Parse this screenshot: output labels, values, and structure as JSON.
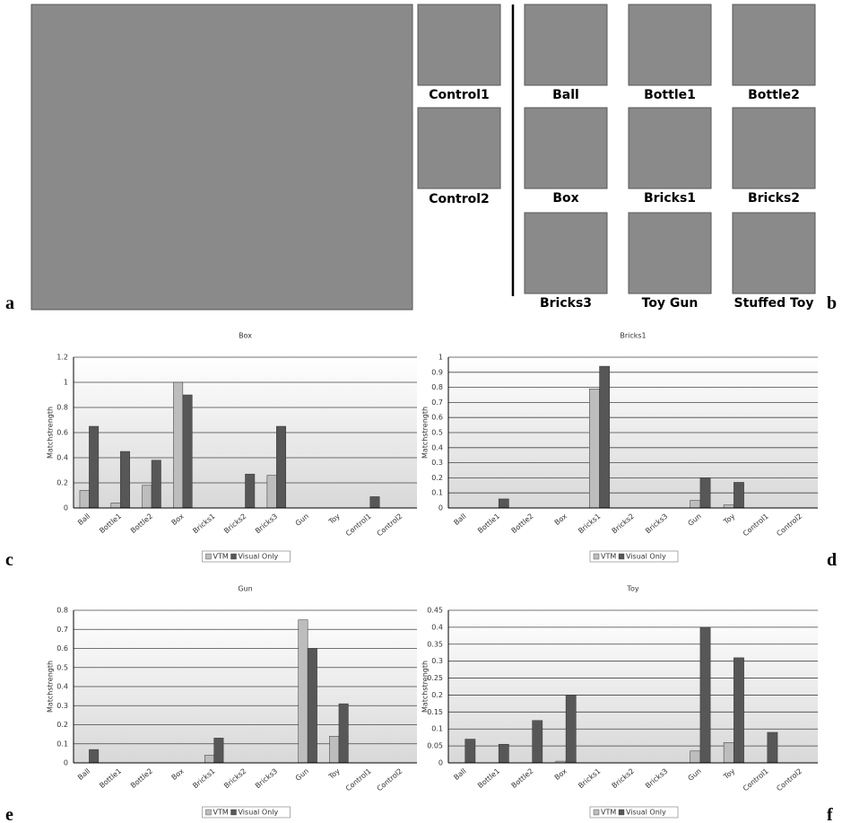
{
  "panel_labels": [
    "a",
    "b",
    "c",
    "d",
    "e",
    "f"
  ],
  "thumbnails": [
    "Control1",
    "Control2",
    "Ball",
    "Bottle1",
    "Bottle2",
    "Box",
    "Bricks1",
    "Bricks2",
    "Bricks3",
    "Toy Gun",
    "Stuffed Toy"
  ],
  "chart_data": [
    {
      "type": "bar",
      "title": "Box",
      "y_label": "Matchstrength",
      "categories": [
        "Ball",
        "Bottle1",
        "Bottle2",
        "Box",
        "Bricks1",
        "Bricks2",
        "Bricks3",
        "Gun",
        "Toy",
        "Control1",
        "Control2"
      ],
      "series": [
        {
          "name": "VTM",
          "color": "#bdbdbd",
          "values": [
            0.14,
            0.04,
            0.18,
            1.0,
            0,
            0,
            0.26,
            0,
            0,
            0,
            0
          ]
        },
        {
          "name": "Visual Only",
          "color": "#575757",
          "values": [
            0.65,
            0.45,
            0.38,
            0.9,
            0,
            0.27,
            0.65,
            0,
            0,
            0.09,
            0
          ]
        }
      ],
      "ylim": [
        0,
        1.2
      ],
      "yticks": [
        0,
        0.2,
        0.4,
        0.6,
        0.8,
        1,
        1.2
      ],
      "grid": true
    },
    {
      "type": "bar",
      "title": "Bricks1",
      "y_label": "Matchstrength",
      "categories": [
        "Ball",
        "Bottle1",
        "Bottle2",
        "Box",
        "Bricks1",
        "Bricks2",
        "Bricks3",
        "Gun",
        "Toy",
        "Control1",
        "Control2"
      ],
      "series": [
        {
          "name": "VTM",
          "color": "#bdbdbd",
          "values": [
            0,
            0,
            0,
            0,
            0.79,
            0,
            0,
            0.05,
            0.02,
            0,
            0
          ]
        },
        {
          "name": "Visual Only",
          "color": "#575757",
          "values": [
            0,
            0.06,
            0,
            0,
            0.94,
            0,
            0,
            0.2,
            0.17,
            0,
            0
          ]
        }
      ],
      "ylim": [
        0,
        1
      ],
      "yticks": [
        0,
        0.1,
        0.2,
        0.3,
        0.4,
        0.5,
        0.6,
        0.7,
        0.8,
        0.9,
        1
      ],
      "grid": true
    },
    {
      "type": "bar",
      "title": "Gun",
      "y_label": "Matchstrength",
      "categories": [
        "Ball",
        "Bottle1",
        "Bottle2",
        "Box",
        "Bricks1",
        "Bricks2",
        "Bricks3",
        "Gun",
        "Toy",
        "Control1",
        "Control2"
      ],
      "series": [
        {
          "name": "VTM",
          "color": "#bdbdbd",
          "values": [
            0,
            0,
            0,
            0,
            0.04,
            0,
            0,
            0.75,
            0.14,
            0,
            0
          ]
        },
        {
          "name": "Visual Only",
          "color": "#575757",
          "values": [
            0.07,
            0,
            0,
            0,
            0.13,
            0,
            0,
            0.6,
            0.31,
            0,
            0
          ]
        }
      ],
      "ylim": [
        0,
        0.8
      ],
      "yticks": [
        0,
        0.1,
        0.2,
        0.3,
        0.4,
        0.5,
        0.6,
        0.7,
        0.8
      ],
      "grid": true
    },
    {
      "type": "bar",
      "title": "Toy",
      "y_label": "Matchstrength",
      "categories": [
        "Ball",
        "Bottle1",
        "Bottle2",
        "Box",
        "Bricks1",
        "Bricks2",
        "Bricks3",
        "Gun",
        "Toy",
        "Control1",
        "Control2"
      ],
      "series": [
        {
          "name": "VTM",
          "color": "#bdbdbd",
          "values": [
            0,
            0,
            0,
            0.005,
            0,
            0,
            0,
            0.035,
            0.06,
            0,
            0
          ]
        },
        {
          "name": "Visual Only",
          "color": "#575757",
          "values": [
            0.07,
            0.055,
            0.125,
            0.2,
            0,
            0,
            0,
            0.4,
            0.31,
            0.09,
            0
          ]
        }
      ],
      "ylim": [
        0,
        0.45
      ],
      "yticks": [
        0,
        0.05,
        0.1,
        0.15,
        0.2,
        0.25,
        0.3,
        0.35,
        0.4,
        0.45
      ],
      "grid": true
    }
  ]
}
